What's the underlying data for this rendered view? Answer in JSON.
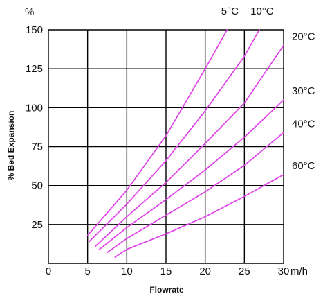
{
  "chart_data": {
    "type": "line",
    "xlabel": "Flowrate",
    "ylabel": "% Bed Expansion",
    "x_unit": "m/h",
    "y_unit": "%",
    "xlim": [
      0,
      30
    ],
    "ylim": [
      0,
      150
    ],
    "x_ticks": [
      0,
      5,
      10,
      15,
      20,
      25,
      30
    ],
    "y_ticks": [
      25,
      50,
      75,
      100,
      125,
      150
    ],
    "grid": true,
    "line_color": "#e040e8",
    "series": [
      {
        "name": "5°C",
        "x": [
          5,
          10,
          15,
          20,
          22.8
        ],
        "y": [
          18,
          47,
          82,
          125,
          150
        ]
      },
      {
        "name": "10°C",
        "x": [
          5.2,
          10,
          15,
          20,
          25,
          26.9
        ],
        "y": [
          14,
          38,
          66,
          98,
          133,
          150
        ]
      },
      {
        "name": "20°C",
        "x": [
          6,
          10,
          15,
          20,
          25,
          30
        ],
        "y": [
          11,
          30,
          52,
          77,
          103,
          140
        ]
      },
      {
        "name": "30°C",
        "x": [
          6.5,
          10,
          15,
          20,
          25,
          30
        ],
        "y": [
          9,
          23,
          41,
          60,
          81,
          105
        ]
      },
      {
        "name": "40°C",
        "x": [
          7.5,
          10,
          15,
          20,
          25,
          30
        ],
        "y": [
          7,
          16,
          31,
          46,
          63,
          84
        ]
      },
      {
        "name": "60°C",
        "x": [
          8.5,
          10,
          15,
          20,
          25,
          30
        ],
        "y": [
          4,
          9,
          19,
          30,
          43,
          57
        ]
      }
    ]
  }
}
